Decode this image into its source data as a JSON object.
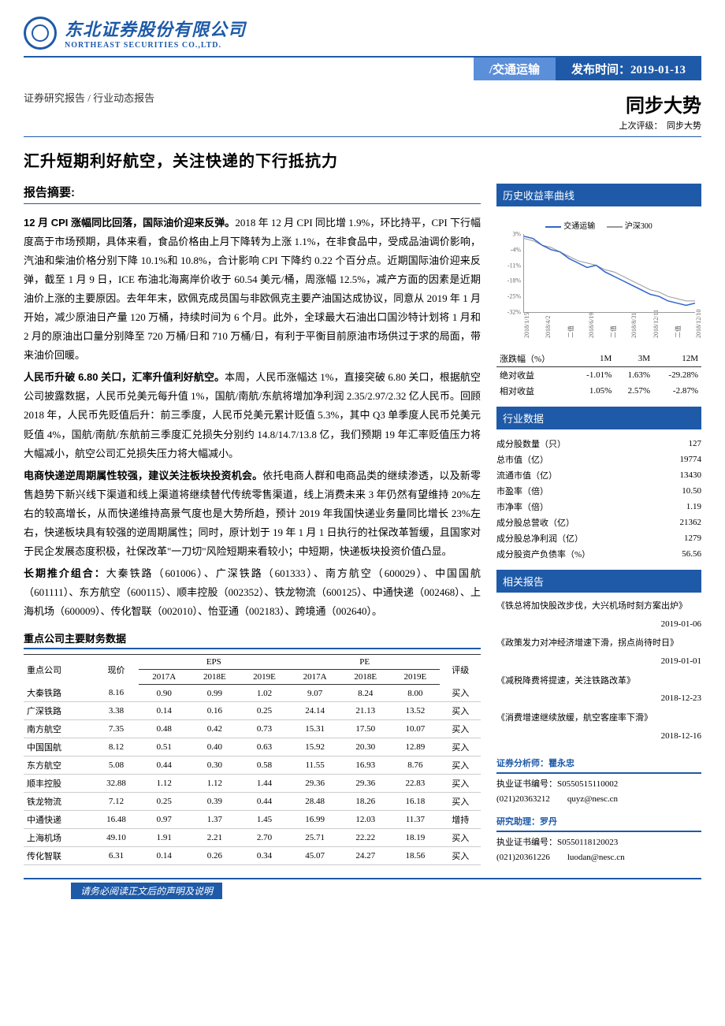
{
  "header": {
    "company_cn": "东北证券股份有限公司",
    "company_en": "NORTHEAST SECURITIES CO.,LTD.",
    "sector": "/交通运输",
    "pub_label": "发布时间：",
    "pub_date": "2019-01-13",
    "doc_type": "证券研究报告 / 行业动态报告",
    "rating": "同步大势",
    "prev_rating_label": "上次评级：",
    "prev_rating": "同步大势"
  },
  "title": "汇升短期利好航空，关注快递的下行抵抗力",
  "summary": {
    "heading": "报告摘要:",
    "p1b": "12 月 CPI 涨幅同比回落，国际油价迎来反弹。",
    "p1": "2018 年 12 月 CPI 同比增 1.9%，环比持平，CPI 下行幅度高于市场预期，具体来看，食品价格由上月下降转为上涨 1.1%，在非食品中，受成品油调价影响，汽油和柴油价格分别下降 10.1%和 10.8%，合计影响 CPI 下降约 0.22 个百分点。近期国际油价迎来反弹，截至 1 月 9 日，ICE 布油北海离岸价收于 60.54 美元/桶，周涨幅 12.5%，减产方面的因素是近期油价上涨的主要原因。去年年末，欧佩克成员国与非欧佩克主要产油国达成协议，同意从 2019 年 1 月开始，减少原油日产量 120 万桶，持续时间为 6 个月。此外，全球最大石油出口国沙特计划将 1 月和 2 月的原油出口量分别降至 720 万桶/日和 710 万桶/日，有利于平衡目前原油市场供过于求的局面，带来油价回暖。",
    "p2b": "人民币升破 6.80 关口，汇率升值利好航空。",
    "p2": "本周，人民币涨幅达 1%，直接突破 6.80 关口，根据航空公司披露数据，人民币兑美元每升值 1%，国航/南航/东航将增加净利润 2.35/2.97/2.32 亿人民币。回顾 2018 年，人民币先贬值后升：前三季度，人民币兑美元累计贬值 5.3%，其中 Q3 单季度人民币兑美元贬值 4%，国航/南航/东航前三季度汇兑损失分别约 14.8/14.7/13.8 亿，我们预期 19 年汇率贬值压力将大幅减小，航空公司汇兑损失压力将大幅减小。",
    "p3b": "电商快递逆周期属性较强，建议关注板块投资机会。",
    "p3": "依托电商人群和电商品类的继续渗透，以及新零售趋势下新兴线下渠道和线上渠道将继续替代传统零售渠道，线上消费未来 3 年仍然有望维持 20%左右的较高增长，从而快递维持高景气度也是大势所趋，预计 2019 年我国快递业务量同比增长 23%左右，快递板块具有较强的逆周期属性；同时，原计划于 19 年 1 月 1 日执行的社保改革暂缓，且国家对于民企发展态度积极，社保改革\"一刀切\"风险短期来看较小；中短期，快递板块投资价值凸显。",
    "p4b": "长期推介组合：",
    "p4": "大秦铁路（601006）、广深铁路（601333）、南方航空（600029）、中国国航（601111）、东方航空（600115）、顺丰控股（002352）、铁龙物流（600125）、中通快递（002468）、上海机场（600009）、传化智联（002010）、怡亚通（002183）、跨境通（002640）。"
  },
  "fin": {
    "title": "重点公司主要财务数据",
    "headers": {
      "company": "重点公司",
      "price": "现价",
      "eps": "EPS",
      "pe": "PE",
      "rating": "评级",
      "y1": "2017A",
      "y2": "2018E",
      "y3": "2019E"
    },
    "rows": [
      {
        "c": "大秦铁路",
        "p": "8.16",
        "e1": "0.90",
        "e2": "0.99",
        "e3": "1.02",
        "pe1": "9.07",
        "pe2": "8.24",
        "pe3": "8.00",
        "r": "买入"
      },
      {
        "c": "广深铁路",
        "p": "3.38",
        "e1": "0.14",
        "e2": "0.16",
        "e3": "0.25",
        "pe1": "24.14",
        "pe2": "21.13",
        "pe3": "13.52",
        "r": "买入"
      },
      {
        "c": "南方航空",
        "p": "7.35",
        "e1": "0.48",
        "e2": "0.42",
        "e3": "0.73",
        "pe1": "15.31",
        "pe2": "17.50",
        "pe3": "10.07",
        "r": "买入"
      },
      {
        "c": "中国国航",
        "p": "8.12",
        "e1": "0.51",
        "e2": "0.40",
        "e3": "0.63",
        "pe1": "15.92",
        "pe2": "20.30",
        "pe3": "12.89",
        "r": "买入"
      },
      {
        "c": "东方航空",
        "p": "5.08",
        "e1": "0.44",
        "e2": "0.30",
        "e3": "0.58",
        "pe1": "11.55",
        "pe2": "16.93",
        "pe3": "8.76",
        "r": "买入"
      },
      {
        "c": "顺丰控股",
        "p": "32.88",
        "e1": "1.12",
        "e2": "1.12",
        "e3": "1.44",
        "pe1": "29.36",
        "pe2": "29.36",
        "pe3": "22.83",
        "r": "买入"
      },
      {
        "c": "铁龙物流",
        "p": "7.12",
        "e1": "0.25",
        "e2": "0.39",
        "e3": "0.44",
        "pe1": "28.48",
        "pe2": "18.26",
        "pe3": "16.18",
        "r": "买入"
      },
      {
        "c": "中通快递",
        "p": "16.48",
        "e1": "0.97",
        "e2": "1.37",
        "e3": "1.45",
        "pe1": "16.99",
        "pe2": "12.03",
        "pe3": "11.37",
        "r": "增持"
      },
      {
        "c": "上海机场",
        "p": "49.10",
        "e1": "1.91",
        "e2": "2.21",
        "e3": "2.70",
        "pe1": "25.71",
        "pe2": "22.22",
        "pe3": "18.19",
        "r": "买入"
      },
      {
        "c": "传化智联",
        "p": "6.31",
        "e1": "0.14",
        "e2": "0.26",
        "e3": "0.34",
        "pe1": "45.07",
        "pe2": "24.27",
        "pe3": "18.56",
        "r": "买入"
      }
    ]
  },
  "chart": {
    "title": "历史收益率曲线",
    "legend1": "交通运输",
    "legend1_color": "#3366cc",
    "legend2": "沪深300",
    "legend2_color": "#999999",
    "yticks": [
      "3%",
      "-4%",
      "-11%",
      "-18%",
      "-25%",
      "-32%"
    ],
    "xticks": [
      "2018/1/15",
      "2018/4/2",
      "二值",
      "2018/6/19",
      "二值",
      "2018/8/31",
      "2018/12/11",
      "二值",
      "2018/12/10"
    ],
    "series1": [
      2,
      1,
      -2,
      -4,
      -5,
      -8,
      -10,
      -12,
      -11,
      -14,
      -16,
      -18,
      -20,
      -22,
      -24,
      -25,
      -27,
      -28,
      -29,
      -28
    ],
    "series2": [
      1,
      0,
      -2,
      -3,
      -5,
      -7,
      -9,
      -10,
      -11,
      -13,
      -14,
      -16,
      -18,
      -20,
      -22,
      -23,
      -25,
      -26,
      -27,
      -27
    ],
    "ylim": [
      -32,
      3
    ]
  },
  "returns": {
    "h0": "涨跌幅（%）",
    "h1": "1M",
    "h2": "3M",
    "h3": "12M",
    "r1": "绝对收益",
    "v11": "-1.01%",
    "v12": "1.63%",
    "v13": "-29.28%",
    "r2": "相对收益",
    "v21": "1.05%",
    "v22": "2.57%",
    "v23": "-2.87%"
  },
  "industry": {
    "title": "行业数据",
    "rows": [
      {
        "k": "成分股数量（只）",
        "v": "127"
      },
      {
        "k": "总市值（亿）",
        "v": "19774"
      },
      {
        "k": "流通市值（亿）",
        "v": "13430"
      },
      {
        "k": "市盈率（倍）",
        "v": "10.50"
      },
      {
        "k": "市净率（倍）",
        "v": "1.19"
      },
      {
        "k": "成分股总营收（亿）",
        "v": "21362"
      },
      {
        "k": "成分股总净利润（亿）",
        "v": "1279"
      },
      {
        "k": "成分股资产负债率（%）",
        "v": "56.56"
      }
    ]
  },
  "reports": {
    "title": "相关报告",
    "items": [
      {
        "t": "《铁总将加快股改步伐，大兴机场时刻方案出炉》",
        "d": "2019-01-06"
      },
      {
        "t": "《政策发力对冲经济增速下滑，拐点尚待时日》",
        "d": "2019-01-01"
      },
      {
        "t": "《减税降费将提速，关注铁路改革》",
        "d": "2018-12-23"
      },
      {
        "t": "《消费增速继续放缓，航空客座率下滑》",
        "d": "2018-12-16"
      }
    ]
  },
  "analyst": {
    "a1_title": "证券分析师：瞿永忠",
    "a1_cert": "执业证书编号：S0550515110002",
    "a1_phone": "(021)20363212",
    "a1_email": "quyz@nesc.cn",
    "a2_title": "研究助理：罗丹",
    "a2_cert": "执业证书编号：S0550118120023",
    "a2_phone": "(021)20361226",
    "a2_email": "luodan@nesc.cn"
  },
  "footer": "请务必阅读正文后的声明及说明"
}
